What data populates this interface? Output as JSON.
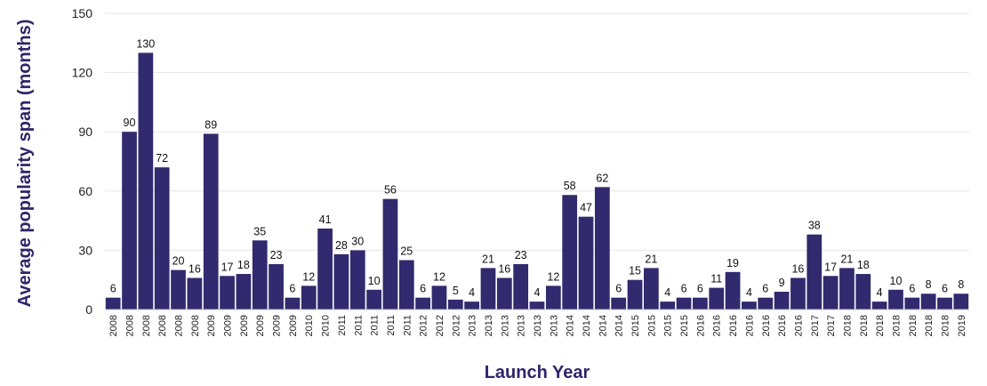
{
  "chart_data": {
    "type": "bar",
    "categories": [
      "2008",
      "2008",
      "2008",
      "2008",
      "2008",
      "2008",
      "2009",
      "2009",
      "2009",
      "2009",
      "2009",
      "2009",
      "2010",
      "2010",
      "2011",
      "2011",
      "2011",
      "2011",
      "2011",
      "2012",
      "2012",
      "2012",
      "2013",
      "2013",
      "2013",
      "2013",
      "2013",
      "2013",
      "2014",
      "2014",
      "2014",
      "2014",
      "2015",
      "2015",
      "2015",
      "2015",
      "2016",
      "2016",
      "2016",
      "2016",
      "2016",
      "2016",
      "2016",
      "2017",
      "2017",
      "2018",
      "2018",
      "2018",
      "2018",
      "2018",
      "2018",
      "2018",
      "2019"
    ],
    "values": [
      6,
      90,
      130,
      72,
      20,
      16,
      89,
      17,
      18,
      35,
      23,
      6,
      12,
      41,
      28,
      30,
      10,
      56,
      25,
      6,
      12,
      5,
      4,
      21,
      16,
      23,
      4,
      12,
      58,
      47,
      62,
      6,
      15,
      21,
      4,
      6,
      6,
      11,
      19,
      4,
      6,
      9,
      16,
      38,
      17,
      21,
      18,
      4,
      10,
      6,
      8,
      6,
      8
    ],
    "xlabel": "Launch Year",
    "ylabel": "Average popularity span (months)",
    "ylim": [
      0,
      150
    ],
    "yticks": [
      0,
      30,
      60,
      90,
      120,
      150
    ],
    "grid": true,
    "legend": "none",
    "bar_color": "#312a6e",
    "title_color": "#2e2668"
  }
}
